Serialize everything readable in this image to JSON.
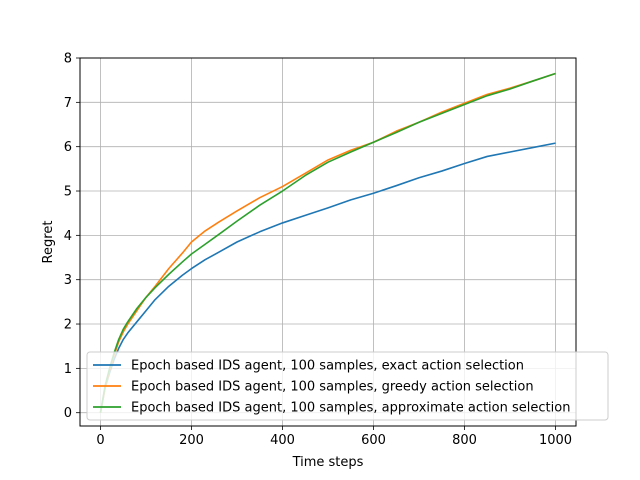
{
  "chart_data": {
    "type": "line",
    "title": "",
    "xlabel": "Time steps",
    "ylabel": "Regret",
    "xlim": [
      -45,
      1045
    ],
    "ylim": [
      -0.3,
      8.0
    ],
    "xticks": [
      0,
      200,
      400,
      600,
      800,
      1000
    ],
    "yticks": [
      0,
      1,
      2,
      3,
      4,
      5,
      6,
      7,
      8
    ],
    "grid": true,
    "legend_position": "bottom-right",
    "series": [
      {
        "name": "Epoch based IDS agent, 100 samples, exact action selection",
        "color": "#1f77b4",
        "x": [
          0,
          10,
          20,
          30,
          40,
          50,
          60,
          80,
          100,
          120,
          150,
          180,
          200,
          230,
          260,
          300,
          350,
          400,
          450,
          500,
          550,
          600,
          650,
          700,
          750,
          800,
          850,
          900,
          950,
          1000
        ],
        "y": [
          0.0,
          0.55,
          0.9,
          1.2,
          1.45,
          1.65,
          1.8,
          2.05,
          2.3,
          2.55,
          2.85,
          3.1,
          3.25,
          3.45,
          3.62,
          3.85,
          4.08,
          4.28,
          4.45,
          4.62,
          4.8,
          4.95,
          5.12,
          5.3,
          5.45,
          5.62,
          5.78,
          5.88,
          5.98,
          6.08
        ]
      },
      {
        "name": "Epoch based IDS agent, 100 samples, greedy action selection",
        "color": "#ff7f0e",
        "x": [
          0,
          10,
          20,
          30,
          40,
          50,
          60,
          80,
          100,
          120,
          150,
          180,
          200,
          230,
          260,
          300,
          350,
          400,
          450,
          500,
          550,
          600,
          650,
          700,
          750,
          800,
          850,
          900,
          950,
          1000
        ],
        "y": [
          0.0,
          0.55,
          0.95,
          1.3,
          1.6,
          1.82,
          2.0,
          2.3,
          2.6,
          2.85,
          3.25,
          3.6,
          3.85,
          4.1,
          4.3,
          4.55,
          4.85,
          5.1,
          5.4,
          5.7,
          5.92,
          6.1,
          6.35,
          6.55,
          6.78,
          6.98,
          7.18,
          7.32,
          7.48,
          7.65
        ]
      },
      {
        "name": "Epoch based IDS agent, 100 samples, approximate action selection",
        "color": "#2ca02c",
        "x": [
          0,
          10,
          20,
          30,
          40,
          50,
          60,
          80,
          100,
          120,
          150,
          180,
          200,
          230,
          260,
          300,
          350,
          400,
          450,
          500,
          550,
          600,
          650,
          700,
          750,
          800,
          850,
          900,
          950,
          1000
        ],
        "y": [
          0.0,
          0.6,
          1.0,
          1.35,
          1.65,
          1.88,
          2.05,
          2.35,
          2.6,
          2.82,
          3.12,
          3.4,
          3.58,
          3.8,
          4.02,
          4.32,
          4.68,
          5.0,
          5.35,
          5.65,
          5.88,
          6.1,
          6.32,
          6.55,
          6.75,
          6.95,
          7.15,
          7.3,
          7.48,
          7.65
        ]
      }
    ]
  }
}
